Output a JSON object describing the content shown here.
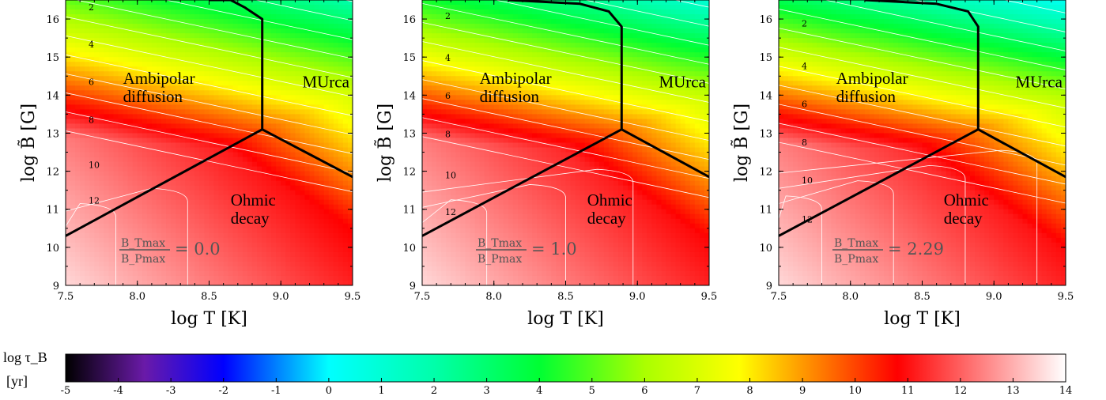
{
  "chart_data": [
    {
      "type": "heatmap",
      "panel": 1,
      "xlabel": "log T  [K]",
      "ylabel": "log B̃  [G]",
      "xlim": [
        7.5,
        9.5
      ],
      "ylim": [
        9,
        16.5
      ],
      "xticks": [
        "7.5",
        "8.0",
        "8.5",
        "9.0",
        "9.5"
      ],
      "yticks": [
        "9",
        "10",
        "11",
        "12",
        "13",
        "14",
        "15",
        "16"
      ],
      "regions": [
        {
          "label_line1": "Ambipolar",
          "label_line2": "diffusion",
          "x": 7.9,
          "y": 14.3
        },
        {
          "label_line1": "MUrca",
          "label_line2": "",
          "x": 9.15,
          "y": 14.2
        },
        {
          "label_line1": "Ohmic",
          "label_line2": "decay",
          "x": 8.65,
          "y": 11.1
        }
      ],
      "boundary_lines": [
        {
          "name": "top",
          "points": [
            [
              8.5,
              16.5
            ],
            [
              8.65,
              16.5
            ],
            [
              8.75,
              16.3
            ],
            [
              8.87,
              16.0
            ],
            [
              8.87,
              13.1
            ]
          ]
        },
        {
          "name": "left",
          "points": [
            [
              7.5,
              10.3
            ],
            [
              8.87,
              13.1
            ]
          ]
        },
        {
          "name": "right",
          "points": [
            [
              8.87,
              13.1
            ],
            [
              9.5,
              11.85
            ]
          ]
        }
      ],
      "contour_labels": [
        {
          "text": "2",
          "x": 7.66,
          "y": 16.23
        },
        {
          "text": "4",
          "x": 7.66,
          "y": 15.25
        },
        {
          "text": "6",
          "x": 7.66,
          "y": 14.27
        },
        {
          "text": "8",
          "x": 7.66,
          "y": 13.27
        },
        {
          "text": "10",
          "x": 7.66,
          "y": 12.08
        },
        {
          "text": "12",
          "x": 7.66,
          "y": 11.15
        }
      ],
      "ratio_label": {
        "numerator": "B_Tmax",
        "denominator": "B_Pmax",
        "value": "= 0.0"
      }
    },
    {
      "type": "heatmap",
      "panel": 2,
      "xlabel": "log T  [K]",
      "ylabel": "log B̃  [G]",
      "xlim": [
        7.5,
        9.5
      ],
      "ylim": [
        9,
        16.5
      ],
      "xticks": [
        "7.5",
        "8.0",
        "8.5",
        "9.0",
        "9.5"
      ],
      "yticks": [
        "9",
        "10",
        "11",
        "12",
        "13",
        "14",
        "15",
        "16"
      ],
      "regions": [
        {
          "label_line1": "Ambipolar",
          "label_line2": "diffusion",
          "x": 7.9,
          "y": 14.3
        },
        {
          "label_line1": "MUrca",
          "label_line2": "",
          "x": 9.15,
          "y": 14.2
        },
        {
          "label_line1": "Ohmic",
          "label_line2": "decay",
          "x": 8.65,
          "y": 11.1
        }
      ],
      "boundary_lines": [
        {
          "name": "top",
          "points": [
            [
              8.1,
              16.5
            ],
            [
              8.6,
              16.4
            ],
            [
              8.8,
              16.2
            ],
            [
              8.89,
              15.8
            ],
            [
              8.89,
              13.1
            ]
          ]
        },
        {
          "name": "left",
          "points": [
            [
              7.5,
              10.3
            ],
            [
              8.89,
              13.1
            ]
          ]
        },
        {
          "name": "right",
          "points": [
            [
              8.89,
              13.1
            ],
            [
              9.5,
              11.85
            ]
          ]
        }
      ],
      "contour_labels": [
        {
          "text": "2",
          "x": 7.66,
          "y": 16.0
        },
        {
          "text": "4",
          "x": 7.66,
          "y": 14.9
        },
        {
          "text": "6",
          "x": 7.66,
          "y": 13.9
        },
        {
          "text": "8",
          "x": 7.66,
          "y": 12.9
        },
        {
          "text": "10",
          "x": 7.66,
          "y": 11.82
        },
        {
          "text": "12",
          "x": 7.66,
          "y": 10.85
        }
      ],
      "ratio_label": {
        "numerator": "B_Tmax",
        "denominator": "B_Pmax",
        "value": "= 1.0"
      }
    },
    {
      "type": "heatmap",
      "panel": 3,
      "xlabel": "log T  [K]",
      "ylabel": "log B̃  [G]",
      "xlim": [
        7.5,
        9.5
      ],
      "ylim": [
        9,
        16.5
      ],
      "xticks": [
        "7.5",
        "8.0",
        "8.5",
        "9.0",
        "9.5"
      ],
      "yticks": [
        "9",
        "10",
        "11",
        "12",
        "13",
        "14",
        "15",
        "16"
      ],
      "regions": [
        {
          "label_line1": "Ambipolar",
          "label_line2": "diffusion",
          "x": 7.9,
          "y": 14.3
        },
        {
          "label_line1": "MUrca",
          "label_line2": "",
          "x": 9.15,
          "y": 14.2
        },
        {
          "label_line1": "Ohmic",
          "label_line2": "decay",
          "x": 8.65,
          "y": 11.1
        }
      ],
      "boundary_lines": [
        {
          "name": "top",
          "points": [
            [
              8.1,
              16.5
            ],
            [
              8.6,
              16.4
            ],
            [
              8.82,
              16.2
            ],
            [
              8.89,
              15.8
            ],
            [
              8.89,
              13.1
            ]
          ]
        },
        {
          "name": "left",
          "points": [
            [
              7.5,
              10.3
            ],
            [
              8.89,
              13.1
            ]
          ]
        },
        {
          "name": "right",
          "points": [
            [
              8.89,
              13.1
            ],
            [
              9.5,
              11.85
            ]
          ]
        }
      ],
      "contour_labels": [
        {
          "text": "2",
          "x": 7.66,
          "y": 15.8
        },
        {
          "text": "4",
          "x": 7.66,
          "y": 14.68
        },
        {
          "text": "6",
          "x": 7.66,
          "y": 13.68
        },
        {
          "text": "8",
          "x": 7.66,
          "y": 12.68
        },
        {
          "text": "10",
          "x": 7.66,
          "y": 11.68
        },
        {
          "text": "12",
          "x": 7.66,
          "y": 10.65
        }
      ],
      "ratio_label": {
        "numerator": "B_Tmax",
        "denominator": "B_Pmax",
        "value": "= 2.29"
      }
    }
  ],
  "colorbar": {
    "label_line1": "log τ_B",
    "label_line2": "[yr]",
    "range": [
      -5,
      14
    ],
    "ticks": [
      "-5",
      "-4",
      "-3",
      "-2",
      "-1",
      "0",
      "1",
      "2",
      "3",
      "4",
      "5",
      "6",
      "7",
      "8",
      "9",
      "10",
      "11",
      "12",
      "13",
      "14"
    ],
    "colormap_stops": [
      {
        "value": -5,
        "color": "#000000"
      },
      {
        "value": -3.5,
        "color": "#6a1aa8"
      },
      {
        "value": -2,
        "color": "#0000ff"
      },
      {
        "value": 0,
        "color": "#00ffff"
      },
      {
        "value": 2,
        "color": "#00ffaa"
      },
      {
        "value": 4,
        "color": "#00ff33"
      },
      {
        "value": 6,
        "color": "#aaff00"
      },
      {
        "value": 7.8,
        "color": "#ffff00"
      },
      {
        "value": 9.4,
        "color": "#ff7700"
      },
      {
        "value": 10.8,
        "color": "#ff0000"
      },
      {
        "value": 14,
        "color": "#ffffff"
      }
    ]
  }
}
